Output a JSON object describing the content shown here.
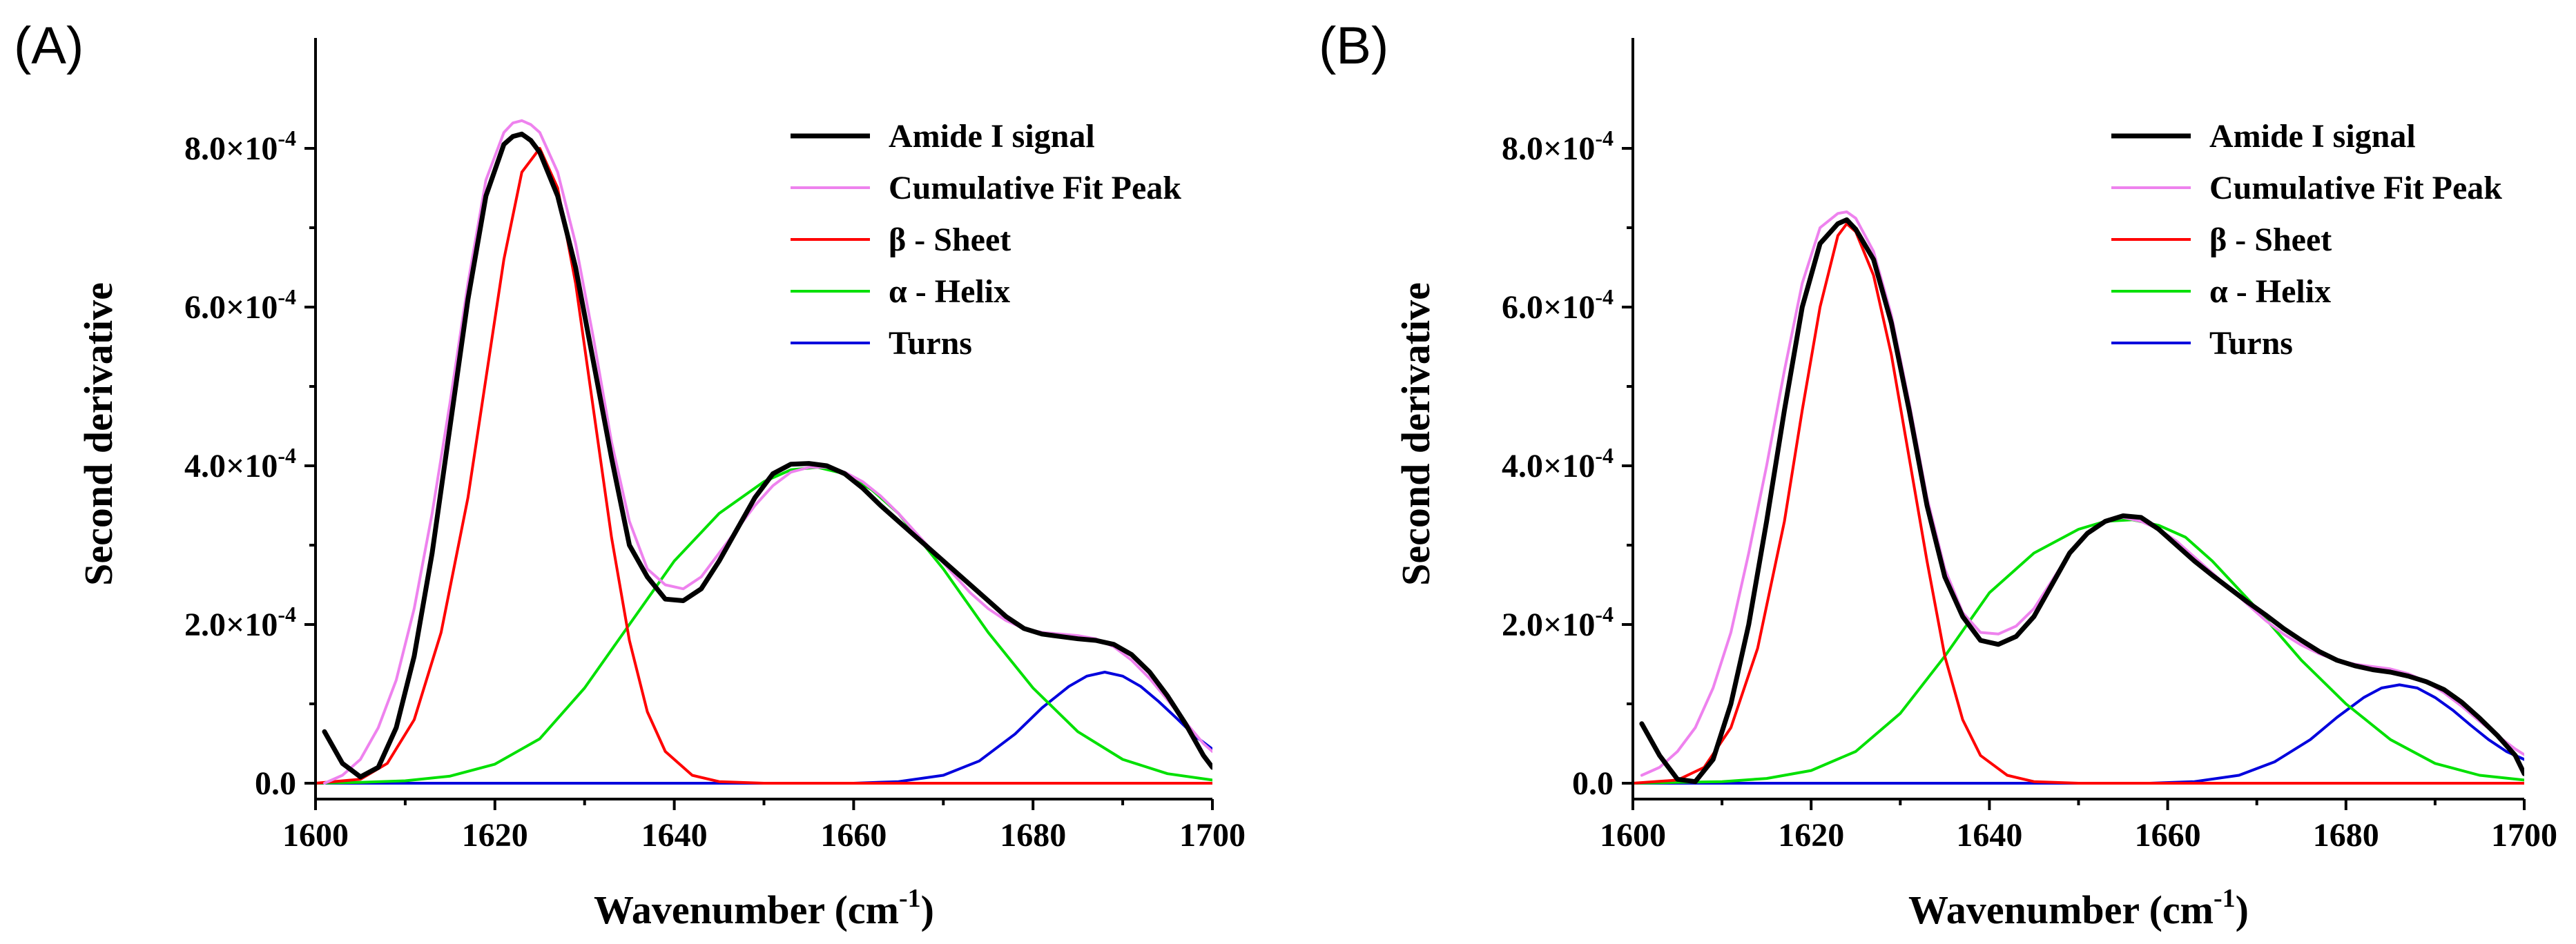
{
  "chart_data": [
    {
      "type": "line",
      "panel_label": "(A)",
      "xlabel_main": "Wavenumber (cm",
      "xlabel_sup": "-1",
      "xlabel_end": ")",
      "ylabel": "Second derivative",
      "xlim": [
        1600,
        1700
      ],
      "ylim": [
        -2e-05,
        0.0009
      ],
      "xticks": [
        1600,
        1620,
        1640,
        1660,
        1680,
        1700
      ],
      "xtick_labels": [
        "1600",
        "1620",
        "1640",
        "1660",
        "1680",
        "1700"
      ],
      "yticks": [
        0,
        0.0002,
        0.0004,
        0.0006,
        0.0008
      ],
      "ytick_labels": [
        {
          "mant": "0.0",
          "exp": ""
        },
        {
          "mant": "2.0×10",
          "exp": "-4"
        },
        {
          "mant": "4.0×10",
          "exp": "-4"
        },
        {
          "mant": "6.0×10",
          "exp": "-4"
        },
        {
          "mant": "8.0×10",
          "exp": "-4"
        }
      ],
      "legend_position": "top-right",
      "series": [
        {
          "name": "Amide I signal",
          "color": "#000000",
          "width": 7,
          "x": [
            1601,
            1603,
            1605,
            1607,
            1609,
            1611,
            1613,
            1615,
            1617,
            1619,
            1621,
            1622,
            1623,
            1624,
            1625,
            1627,
            1629,
            1631,
            1633,
            1635,
            1637,
            1639,
            1641,
            1643,
            1645,
            1647,
            1649,
            1651,
            1653,
            1655,
            1657,
            1659,
            1661,
            1663,
            1665,
            1667,
            1669,
            1671,
            1673,
            1675,
            1677,
            1679,
            1681,
            1683,
            1685,
            1687,
            1689,
            1691,
            1693,
            1695,
            1697,
            1699,
            1700
          ],
          "y": [
            6.5e-05,
            2.5e-05,
            8e-06,
            2e-05,
            7e-05,
            0.00016,
            0.00029,
            0.00045,
            0.00061,
            0.00074,
            0.000805,
            0.000815,
            0.000818,
            0.00081,
            0.000795,
            0.00074,
            0.00065,
            0.00053,
            0.00041,
            0.0003,
            0.00026,
            0.000232,
            0.00023,
            0.000245,
            0.00028,
            0.00032,
            0.00036,
            0.00039,
            0.000402,
            0.000403,
            0.0004,
            0.00039,
            0.000372,
            0.00035,
            0.00033,
            0.00031,
            0.00029,
            0.00027,
            0.00025,
            0.00023,
            0.00021,
            0.000195,
            0.000188,
            0.000185,
            0.000182,
            0.00018,
            0.000175,
            0.000162,
            0.00014,
            0.00011,
            7.5e-05,
            3.5e-05,
            2e-05
          ]
        },
        {
          "name": "Cumulative Fit Peak",
          "color": "#ee82ee",
          "width": 4,
          "x": [
            1601,
            1603,
            1605,
            1607,
            1609,
            1611,
            1613,
            1615,
            1617,
            1619,
            1621,
            1622,
            1623,
            1624,
            1625,
            1627,
            1629,
            1631,
            1633,
            1635,
            1637,
            1639,
            1641,
            1643,
            1645,
            1647,
            1649,
            1651,
            1653,
            1655,
            1657,
            1659,
            1661,
            1663,
            1665,
            1667,
            1669,
            1671,
            1673,
            1675,
            1677,
            1679,
            1681,
            1683,
            1685,
            1687,
            1689,
            1691,
            1693,
            1695,
            1697,
            1699,
            1700
          ],
          "y": [
            0.0,
            1e-05,
            3e-05,
            7e-05,
            0.00013,
            0.00022,
            0.00034,
            0.00048,
            0.00063,
            0.00076,
            0.00082,
            0.000832,
            0.000835,
            0.00083,
            0.00082,
            0.00077,
            0.00068,
            0.00056,
            0.00043,
            0.00033,
            0.00027,
            0.00025,
            0.000245,
            0.00026,
            0.00029,
            0.00032,
            0.00035,
            0.000375,
            0.000392,
            0.000398,
            0.000398,
            0.000392,
            0.00038,
            0.000362,
            0.00034,
            0.000315,
            0.00029,
            0.000265,
            0.00024,
            0.00022,
            0.000205,
            0.000195,
            0.00019,
            0.000188,
            0.000186,
            0.000182,
            0.000172,
            0.000155,
            0.000132,
            0.000105,
            7.7e-05,
            5e-05,
            4e-05
          ]
        },
        {
          "name": "β - Sheet",
          "color": "#ff0000",
          "width": 4,
          "x": [
            1600,
            1605,
            1608,
            1611,
            1614,
            1617,
            1619,
            1621,
            1623,
            1625,
            1627,
            1629,
            1631,
            1633,
            1635,
            1637,
            1639,
            1642,
            1645,
            1650,
            1660,
            1700
          ],
          "y": [
            0.0,
            5e-06,
            2.5e-05,
            8e-05,
            0.00019,
            0.00036,
            0.00051,
            0.00066,
            0.00077,
            0.0008,
            0.00075,
            0.00063,
            0.00047,
            0.00031,
            0.00018,
            9e-05,
            4e-05,
            1e-05,
            2e-06,
            0,
            0,
            0
          ]
        },
        {
          "name": "α - Helix",
          "color": "#00e000",
          "width": 4,
          "x": [
            1600,
            1605,
            1610,
            1615,
            1620,
            1625,
            1630,
            1635,
            1640,
            1645,
            1650,
            1653,
            1656,
            1659,
            1662,
            1665,
            1670,
            1675,
            1680,
            1685,
            1690,
            1695,
            1700
          ],
          "y": [
            0,
            1e-06,
            3e-06,
            9e-06,
            2.4e-05,
            5.6e-05,
            0.00012,
            0.0002,
            0.00028,
            0.00034,
            0.00038,
            0.000395,
            0.000398,
            0.00039,
            0.00037,
            0.00034,
            0.00027,
            0.00019,
            0.00012,
            6.5e-05,
            3e-05,
            1.2e-05,
            4e-06
          ]
        },
        {
          "name": "Turns",
          "color": "#0000dd",
          "width": 4,
          "x": [
            1600,
            1660,
            1665,
            1670,
            1674,
            1678,
            1681,
            1684,
            1686,
            1688,
            1690,
            1692,
            1694,
            1696,
            1698,
            1700
          ],
          "y": [
            0,
            0,
            2e-06,
            1e-05,
            2.8e-05,
            6.2e-05,
            9.5e-05,
            0.000122,
            0.000135,
            0.00014,
            0.000135,
            0.000122,
            0.000103,
            8.2e-05,
            6e-05,
            4.3e-05
          ]
        }
      ]
    },
    {
      "type": "line",
      "panel_label": "(B)",
      "xlabel_main": "Wavenumber (cm",
      "xlabel_sup": "-1",
      "xlabel_end": ")",
      "ylabel": "Second derivative",
      "xlim": [
        1600,
        1700
      ],
      "ylim": [
        -2e-05,
        0.0009
      ],
      "xticks": [
        1600,
        1620,
        1640,
        1660,
        1680,
        1700
      ],
      "xtick_labels": [
        "1600",
        "1620",
        "1640",
        "1660",
        "1680",
        "1700"
      ],
      "yticks": [
        0,
        0.0002,
        0.0004,
        0.0006,
        0.0008
      ],
      "ytick_labels": [
        {
          "mant": "0.0",
          "exp": ""
        },
        {
          "mant": "2.0×10",
          "exp": "-4"
        },
        {
          "mant": "4.0×10",
          "exp": "-4"
        },
        {
          "mant": "6.0×10",
          "exp": "-4"
        },
        {
          "mant": "8.0×10",
          "exp": "-4"
        }
      ],
      "legend_position": "top-right",
      "series": [
        {
          "name": "Amide I signal",
          "color": "#000000",
          "width": 7,
          "x": [
            1601,
            1603,
            1605,
            1607,
            1609,
            1611,
            1613,
            1615,
            1617,
            1619,
            1621,
            1623,
            1624,
            1625,
            1627,
            1629,
            1631,
            1633,
            1635,
            1637,
            1639,
            1641,
            1643,
            1645,
            1647,
            1649,
            1651,
            1653,
            1655,
            1657,
            1659,
            1661,
            1663,
            1665,
            1667,
            1669,
            1671,
            1673,
            1675,
            1677,
            1679,
            1681,
            1683,
            1685,
            1687,
            1689,
            1691,
            1693,
            1695,
            1697,
            1699,
            1700
          ],
          "y": [
            7.5e-05,
            3.5e-05,
            5e-06,
            2e-06,
            3e-05,
            0.0001,
            0.0002,
            0.00033,
            0.00047,
            0.0006,
            0.00068,
            0.000705,
            0.00071,
            0.000698,
            0.00066,
            0.00058,
            0.00047,
            0.00035,
            0.00026,
            0.00021,
            0.00018,
            0.000175,
            0.000185,
            0.00021,
            0.00025,
            0.00029,
            0.000315,
            0.00033,
            0.000337,
            0.000335,
            0.00032,
            0.0003,
            0.00028,
            0.000262,
            0.000245,
            0.000228,
            0.000212,
            0.000195,
            0.00018,
            0.000166,
            0.000155,
            0.000148,
            0.000143,
            0.00014,
            0.000135,
            0.000128,
            0.000118,
            0.000102,
            8.2e-05,
            6e-05,
            3.5e-05,
            1.2e-05
          ]
        },
        {
          "name": "Cumulative Fit Peak",
          "color": "#ee82ee",
          "width": 4,
          "x": [
            1601,
            1603,
            1605,
            1607,
            1609,
            1611,
            1613,
            1615,
            1617,
            1619,
            1621,
            1623,
            1624,
            1625,
            1627,
            1629,
            1631,
            1633,
            1635,
            1637,
            1639,
            1641,
            1643,
            1645,
            1647,
            1649,
            1651,
            1653,
            1655,
            1657,
            1659,
            1661,
            1663,
            1665,
            1667,
            1669,
            1671,
            1673,
            1675,
            1677,
            1679,
            1681,
            1683,
            1685,
            1687,
            1689,
            1691,
            1693,
            1695,
            1697,
            1699,
            1700
          ],
          "y": [
            1e-05,
            2e-05,
            4e-05,
            7e-05,
            0.00012,
            0.00019,
            0.00029,
            0.0004,
            0.00052,
            0.00063,
            0.0007,
            0.000718,
            0.00072,
            0.000712,
            0.00067,
            0.00059,
            0.00048,
            0.00036,
            0.00027,
            0.000215,
            0.00019,
            0.000188,
            0.000198,
            0.00022,
            0.000255,
            0.00029,
            0.000315,
            0.00033,
            0.000335,
            0.00033,
            0.00032,
            0.000305,
            0.000285,
            0.000265,
            0.000245,
            0.000225,
            0.000205,
            0.000188,
            0.000174,
            0.000163,
            0.000155,
            0.00015,
            0.000147,
            0.000144,
            0.000138,
            0.000128,
            0.000114,
            9.7e-05,
            7.8e-05,
            6e-05,
            4.3e-05,
            3.6e-05
          ]
        },
        {
          "name": "β - Sheet",
          "color": "#ff0000",
          "width": 4,
          "x": [
            1600,
            1605,
            1608,
            1611,
            1614,
            1617,
            1619,
            1621,
            1623,
            1624,
            1625,
            1627,
            1629,
            1631,
            1633,
            1635,
            1637,
            1639,
            1642,
            1645,
            1650,
            1660,
            1700
          ],
          "y": [
            0,
            4e-06,
            2e-05,
            7e-05,
            0.00017,
            0.00033,
            0.00047,
            0.0006,
            0.00069,
            0.000705,
            0.000695,
            0.00064,
            0.00054,
            0.00041,
            0.00028,
            0.00016,
            8e-05,
            3.5e-05,
            1e-05,
            2e-06,
            0,
            0,
            0
          ]
        },
        {
          "name": "α - Helix",
          "color": "#00e000",
          "width": 4,
          "x": [
            1600,
            1605,
            1610,
            1615,
            1620,
            1625,
            1630,
            1635,
            1640,
            1645,
            1650,
            1653,
            1656,
            1659,
            1662,
            1665,
            1670,
            1675,
            1680,
            1685,
            1690,
            1695,
            1700
          ],
          "y": [
            0,
            1e-06,
            2e-06,
            6e-06,
            1.6e-05,
            4e-05,
            8.8e-05,
            0.00016,
            0.00024,
            0.00029,
            0.00032,
            0.00033,
            0.000332,
            0.000325,
            0.00031,
            0.00028,
            0.00022,
            0.000155,
            0.0001,
            5.5e-05,
            2.5e-05,
            1e-05,
            4e-06
          ]
        },
        {
          "name": "Turns",
          "color": "#0000dd",
          "width": 4,
          "x": [
            1600,
            1658,
            1663,
            1668,
            1672,
            1676,
            1679,
            1682,
            1684,
            1686,
            1688,
            1690,
            1692,
            1694,
            1696,
            1698,
            1700
          ],
          "y": [
            0,
            0,
            2e-06,
            1e-05,
            2.7e-05,
            5.5e-05,
            8.3e-05,
            0.000108,
            0.00012,
            0.000124,
            0.00012,
            0.000108,
            9.2e-05,
            7.3e-05,
            5.5e-05,
            4e-05,
            3e-05
          ]
        }
      ]
    }
  ]
}
